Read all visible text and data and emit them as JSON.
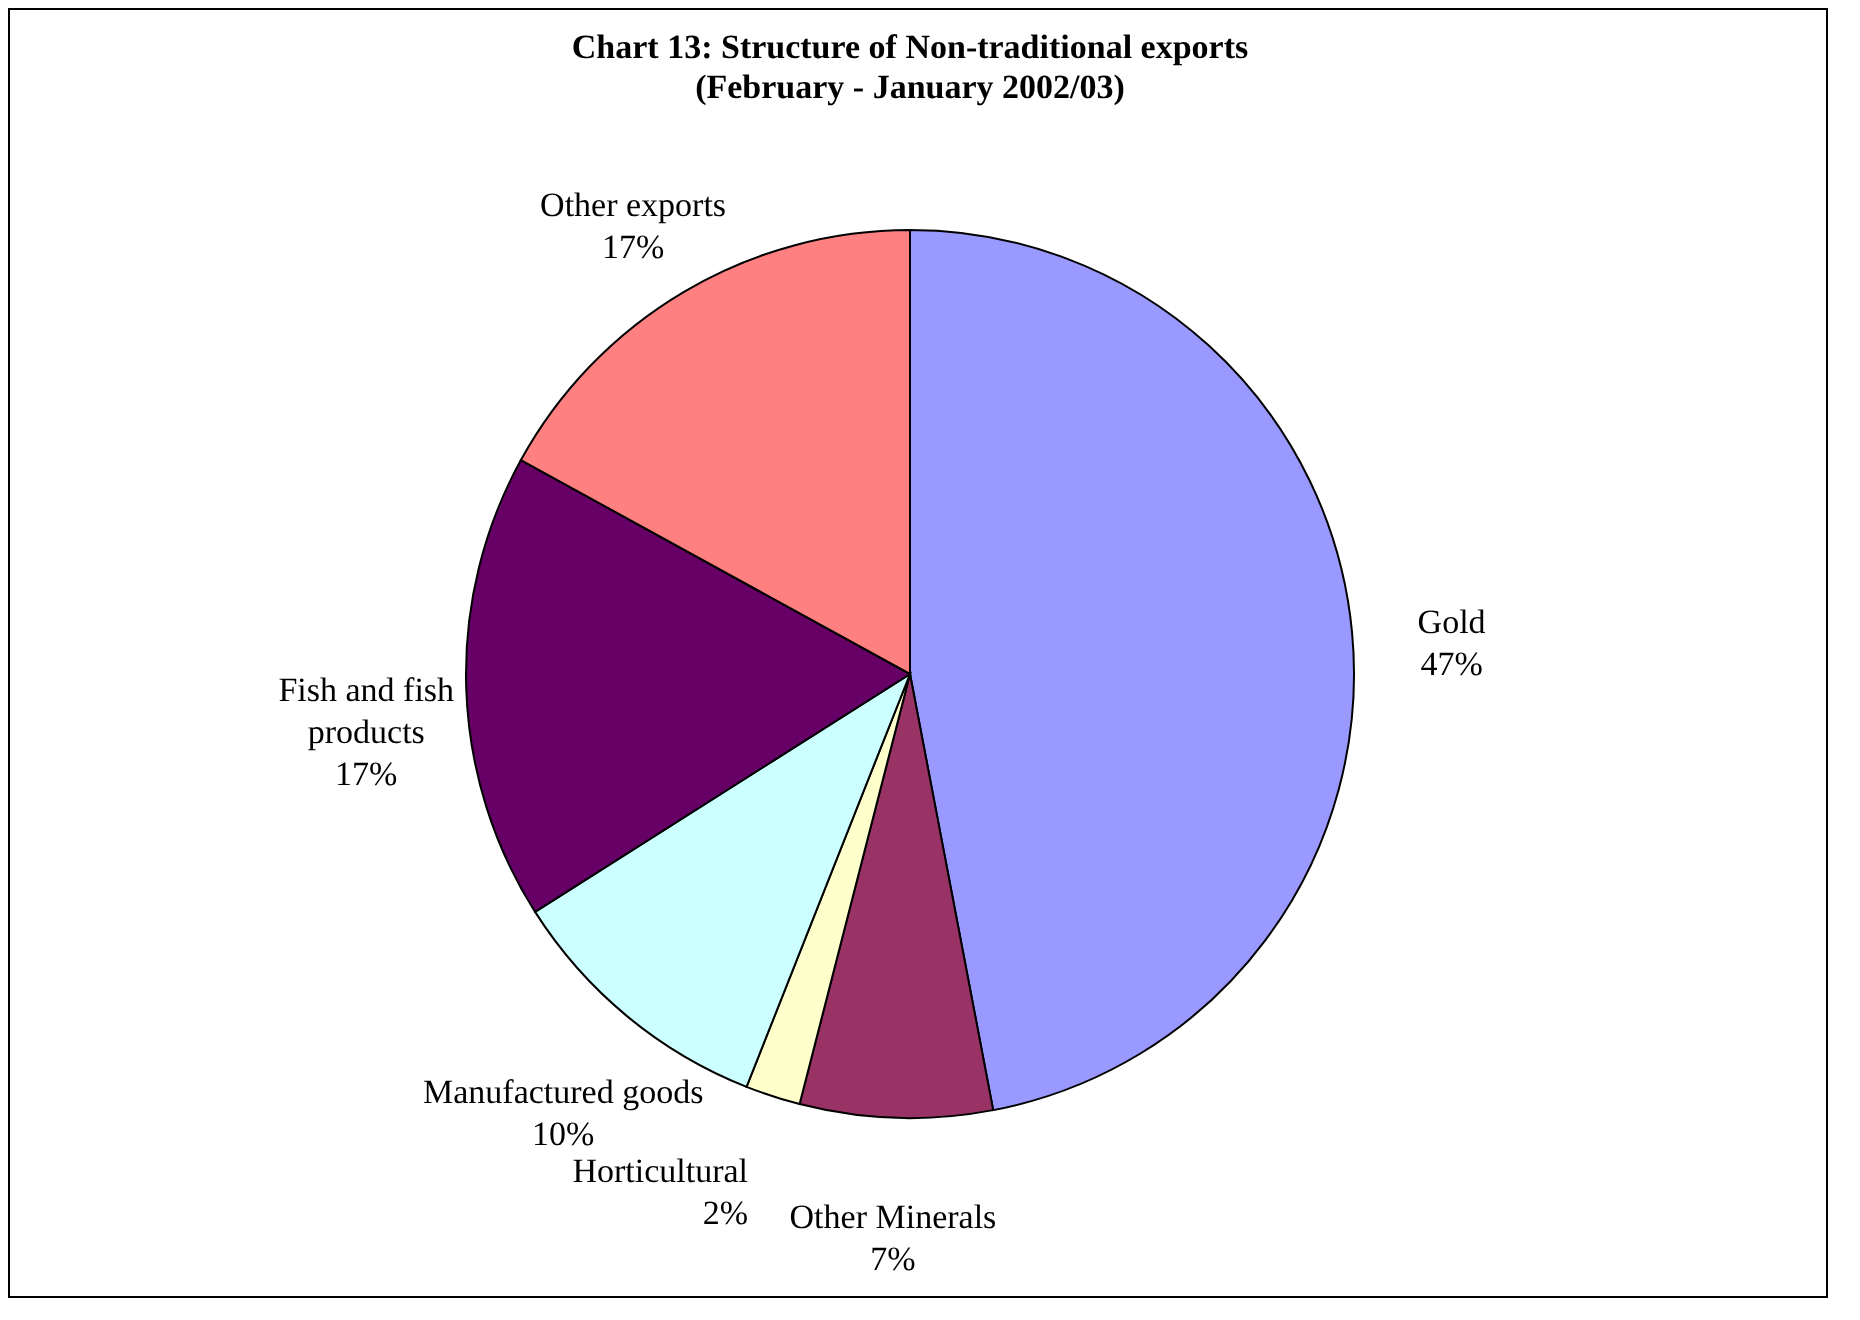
{
  "chart_data": {
    "type": "pie",
    "title": "Chart 13: Structure of Non-traditional exports",
    "subtitle": "(February - January 2002/03)",
    "categories": [
      "Gold",
      "Other Minerals",
      "Horticultural",
      "Manufactured goods",
      "Fish and fish products",
      "Other exports"
    ],
    "values": [
      47,
      7,
      2,
      10,
      17,
      17
    ],
    "colors": [
      "#9999ff",
      "#993366",
      "#ffffcc",
      "#ccffff",
      "#660066",
      "#ff8080"
    ],
    "value_labels": [
      "47%",
      "7%",
      "2%",
      "10%",
      "17%",
      "17%"
    ],
    "legend": false
  }
}
